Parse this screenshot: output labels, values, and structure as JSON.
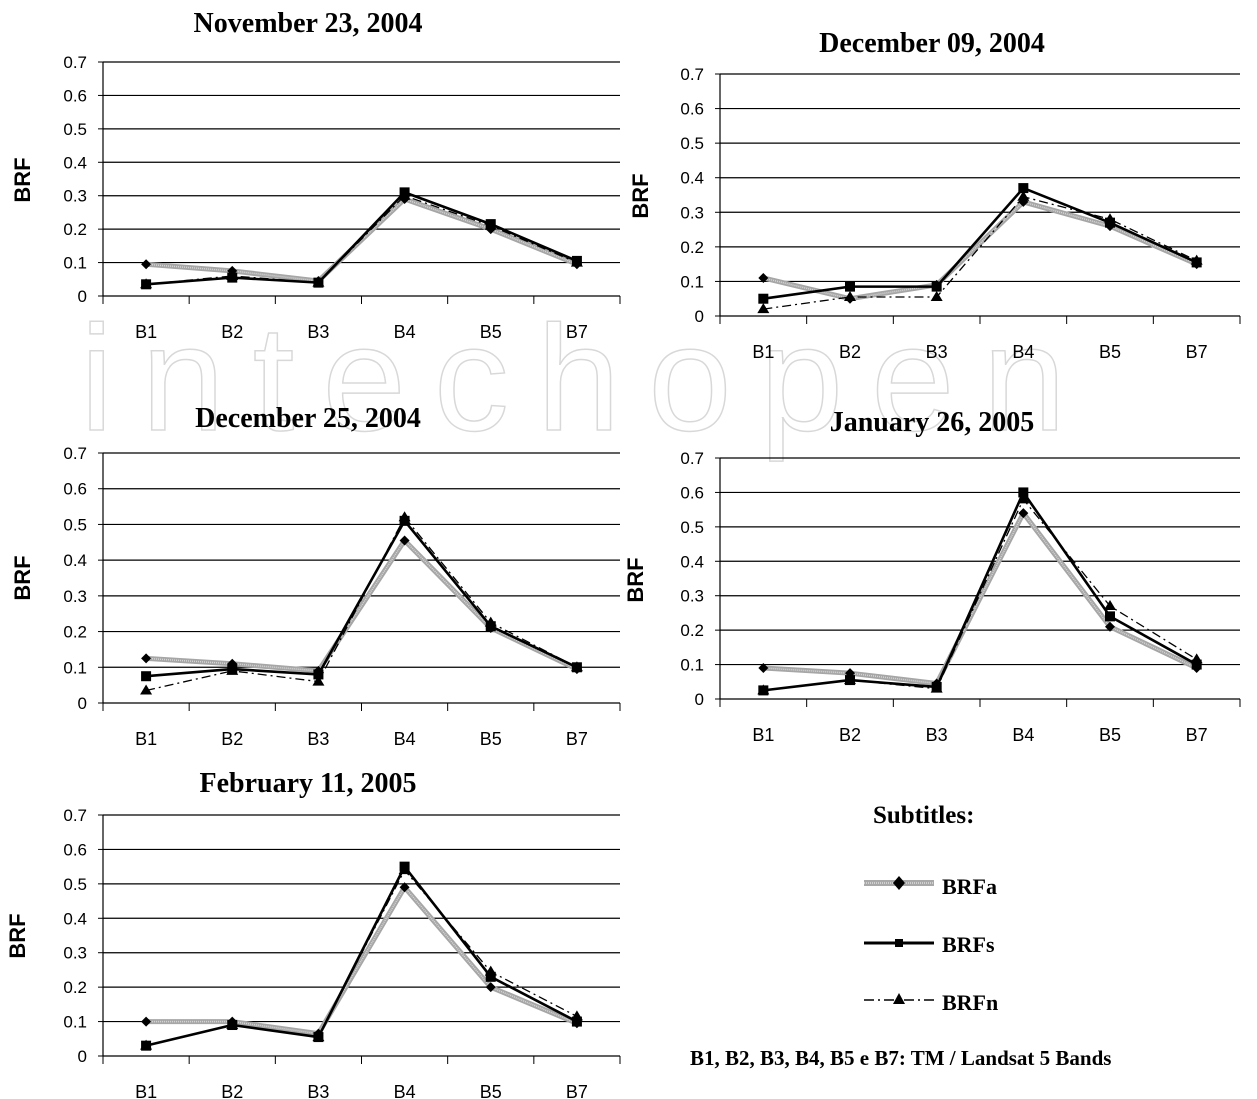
{
  "chart_data": [
    {
      "type": "line",
      "title": "November 23, 2004",
      "ylabel": "BRF",
      "categories": [
        "B1",
        "B2",
        "B3",
        "B4",
        "B5",
        "B7"
      ],
      "ylim": [
        0,
        0.7
      ],
      "yticks": [
        "0",
        "0.1",
        "0.2",
        "0.3",
        "0.4",
        "0.5",
        "0.6",
        "0.7"
      ],
      "series": [
        {
          "name": "BRFa",
          "values": [
            0.095,
            0.075,
            0.045,
            0.29,
            0.2,
            0.095
          ]
        },
        {
          "name": "BRFs",
          "values": [
            0.035,
            0.055,
            0.04,
            0.31,
            0.215,
            0.105
          ]
        },
        {
          "name": "BRFn",
          "values": [
            0.035,
            0.06,
            0.04,
            0.3,
            0.21,
            0.1
          ]
        }
      ]
    },
    {
      "type": "line",
      "title": "December 09, 2004",
      "ylabel": "BRF",
      "categories": [
        "B1",
        "B2",
        "B3",
        "B4",
        "B5",
        "B7"
      ],
      "ylim": [
        0,
        0.7
      ],
      "yticks": [
        "0",
        "0.1",
        "0.2",
        "0.3",
        "0.4",
        "0.5",
        "0.6",
        "0.7"
      ],
      "series": [
        {
          "name": "BRFa",
          "values": [
            0.11,
            0.05,
            0.09,
            0.33,
            0.26,
            0.15
          ]
        },
        {
          "name": "BRFs",
          "values": [
            0.05,
            0.085,
            0.085,
            0.37,
            0.27,
            0.155
          ]
        },
        {
          "name": "BRFn",
          "values": [
            0.02,
            0.055,
            0.055,
            0.345,
            0.28,
            0.16
          ]
        }
      ]
    },
    {
      "type": "line",
      "title": "December 25, 2004",
      "ylabel": "BRF",
      "categories": [
        "B1",
        "B2",
        "B3",
        "B4",
        "B5",
        "B7"
      ],
      "ylim": [
        0,
        0.7
      ],
      "yticks": [
        "0",
        "0.1",
        "0.2",
        "0.3",
        "0.4",
        "0.5",
        "0.6",
        "0.7"
      ],
      "series": [
        {
          "name": "BRFa",
          "values": [
            0.125,
            0.11,
            0.09,
            0.455,
            0.21,
            0.095
          ]
        },
        {
          "name": "BRFs",
          "values": [
            0.075,
            0.095,
            0.08,
            0.51,
            0.215,
            0.1
          ]
        },
        {
          "name": "BRFn",
          "values": [
            0.035,
            0.09,
            0.06,
            0.52,
            0.225,
            0.1
          ]
        }
      ]
    },
    {
      "type": "line",
      "title": "January 26, 2005",
      "ylabel": "BRF",
      "categories": [
        "B1",
        "B2",
        "B3",
        "B4",
        "B5",
        "B7"
      ],
      "ylim": [
        0,
        0.7
      ],
      "yticks": [
        "0",
        "0.1",
        "0.2",
        "0.3",
        "0.4",
        "0.5",
        "0.6",
        "0.7"
      ],
      "series": [
        {
          "name": "BRFa",
          "values": [
            0.09,
            0.075,
            0.045,
            0.54,
            0.21,
            0.09
          ]
        },
        {
          "name": "BRFs",
          "values": [
            0.025,
            0.055,
            0.035,
            0.6,
            0.24,
            0.1
          ]
        },
        {
          "name": "BRFn",
          "values": [
            0.025,
            0.055,
            0.03,
            0.58,
            0.27,
            0.115
          ]
        }
      ]
    },
    {
      "type": "line",
      "title": "February 11, 2005",
      "ylabel": "BRF",
      "categories": [
        "B1",
        "B2",
        "B3",
        "B4",
        "B5",
        "B7"
      ],
      "ylim": [
        0,
        0.7
      ],
      "yticks": [
        "0",
        "0.1",
        "0.2",
        "0.3",
        "0.4",
        "0.5",
        "0.6",
        "0.7"
      ],
      "series": [
        {
          "name": "BRFa",
          "values": [
            0.1,
            0.1,
            0.065,
            0.49,
            0.2,
            0.095
          ]
        },
        {
          "name": "BRFs",
          "values": [
            0.03,
            0.09,
            0.055,
            0.55,
            0.23,
            0.1
          ]
        },
        {
          "name": "BRFn",
          "values": [
            0.03,
            0.09,
            0.055,
            0.54,
            0.245,
            0.115
          ]
        }
      ]
    }
  ],
  "legend": {
    "title": "Subtitles:",
    "items": [
      {
        "label": "BRFa",
        "style": "gray-band-diamond"
      },
      {
        "label": "BRFs",
        "style": "solid-square"
      },
      {
        "label": "BRFn",
        "style": "dashdot-triangle"
      }
    ],
    "note": "B1, B2, B3, B4, B5 e B7: TM / Landsat 5 Bands"
  },
  "colors": {
    "line": "#000000",
    "brfa_band": "#a8a8a8",
    "grid": "#000000"
  }
}
